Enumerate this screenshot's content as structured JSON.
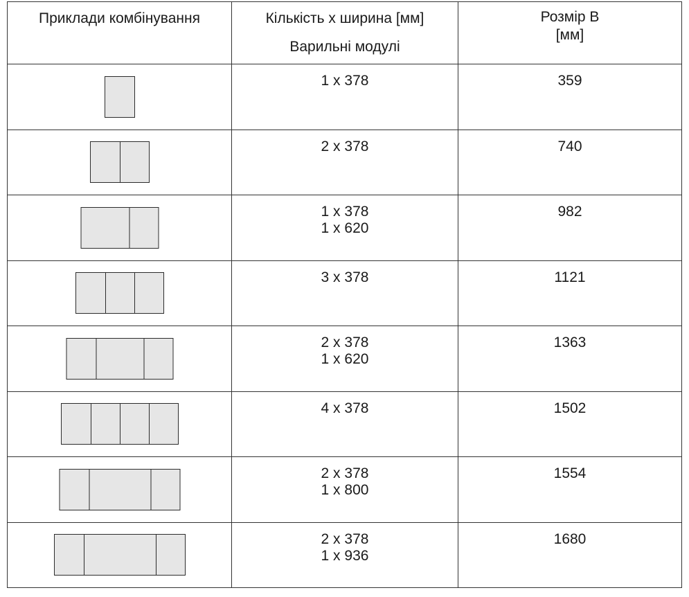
{
  "header": {
    "col1": "Приклади комбінування",
    "col2_line1": "Кількість x ширина [мм]",
    "col2_line2": "Варильні модулі",
    "col3_line1": "Розмір B",
    "col3_line2": "[мм]"
  },
  "rows": [
    {
      "modules": [
        378
      ],
      "lines": [
        "1 x 378"
      ],
      "size": "359"
    },
    {
      "modules": [
        378,
        378
      ],
      "lines": [
        "2 x 378"
      ],
      "size": "740"
    },
    {
      "modules": [
        620,
        378
      ],
      "lines": [
        "1 x 378",
        "1 x 620"
      ],
      "size": "982"
    },
    {
      "modules": [
        378,
        378,
        378
      ],
      "lines": [
        "3 x 378"
      ],
      "size": "1121"
    },
    {
      "modules": [
        378,
        620,
        378
      ],
      "lines": [
        "2 x 378",
        "1 x 620"
      ],
      "size": "1363"
    },
    {
      "modules": [
        378,
        378,
        378,
        378
      ],
      "lines": [
        "4 x 378"
      ],
      "size": "1502"
    },
    {
      "modules": [
        378,
        800,
        378
      ],
      "lines": [
        "2 x 378",
        "1 x 800"
      ],
      "size": "1554"
    },
    {
      "modules": [
        378,
        936,
        378
      ],
      "lines": [
        "2 x 378",
        "1 x 936"
      ],
      "size": "1680"
    }
  ]
}
